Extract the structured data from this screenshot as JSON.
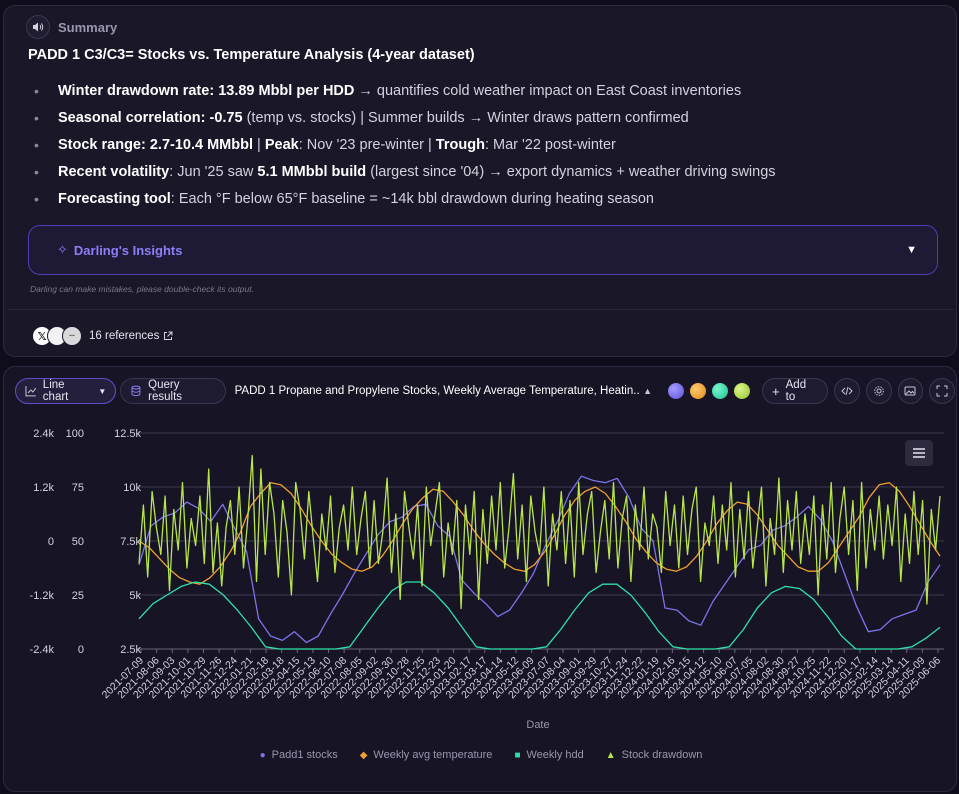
{
  "summary": {
    "label": "Summary",
    "title": "PADD 1 C3/C3= Stocks vs. Temperature Analysis (4-year dataset)",
    "bullets": [
      {
        "parts": [
          {
            "b": true,
            "t": "Winter drawdown rate: "
          },
          {
            "b": true,
            "t": "13.89 Mbbl per HDD"
          },
          {
            "b": false,
            "t": " → quantifies cold weather impact on East Coast inventories"
          }
        ]
      },
      {
        "parts": [
          {
            "b": true,
            "t": "Seasonal correlation: "
          },
          {
            "b": true,
            "t": "-0.75"
          },
          {
            "b": false,
            "t": " (temp vs. stocks) | Summer builds → Winter draws pattern confirmed"
          }
        ]
      },
      {
        "parts": [
          {
            "b": true,
            "t": "Stock range: "
          },
          {
            "b": true,
            "t": "2.7-10.4 MMbbl"
          },
          {
            "b": false,
            "t": " | "
          },
          {
            "b": true,
            "t": "Peak"
          },
          {
            "b": false,
            "t": ": Nov '23 pre-winter | "
          },
          {
            "b": true,
            "t": "Trough"
          },
          {
            "b": false,
            "t": ": Mar '22 post-winter"
          }
        ]
      },
      {
        "parts": [
          {
            "b": true,
            "t": "Recent volatility"
          },
          {
            "b": false,
            "t": ": Jun '25 saw "
          },
          {
            "b": true,
            "t": "5.1 MMbbl build"
          },
          {
            "b": false,
            "t": " (largest since '04) → export dynamics + weather driving swings"
          }
        ]
      },
      {
        "parts": [
          {
            "b": true,
            "t": "Forecasting tool"
          },
          {
            "b": false,
            "t": ": Each °F below 65°F baseline = ~14k bbl drawdown during heating season"
          }
        ]
      }
    ],
    "insights_label": "Darling's Insights",
    "disclaimer": "Darling can make mistakes, please double-check its output.",
    "references_label": "16 references"
  },
  "toolbar": {
    "chart_type_label": "Line chart",
    "query_results_label": "Query results",
    "query_title": "PADD 1 Propane and Propylene Stocks, Weekly Average Temperature, Heatin...",
    "add_to_label": "Add to",
    "swatch_colors": [
      "#7b6ff0",
      "#f0a030",
      "#2ee6b0",
      "#b8e64a"
    ]
  },
  "chart_data": {
    "type": "line",
    "xlabel": "Date",
    "x_ticks": [
      "2021-07-09",
      "2021-08-06",
      "2021-09-03",
      "2021-10-01",
      "2021-10-29",
      "2021-11-26",
      "2021-12-24",
      "2022-01-21",
      "2022-02-18",
      "2022-03-18",
      "2022-04-15",
      "2022-05-13",
      "2022-06-10",
      "2022-07-08",
      "2022-08-05",
      "2022-09-02",
      "2022-09-30",
      "2022-10-28",
      "2022-11-25",
      "2022-12-23",
      "2023-01-20",
      "2023-02-17",
      "2023-03-17",
      "2023-04-14",
      "2023-05-12",
      "2023-06-09",
      "2023-07-07",
      "2023-08-04",
      "2023-09-01",
      "2023-09-29",
      "2023-10-27",
      "2023-11-24",
      "2023-12-22",
      "2024-01-19",
      "2024-02-16",
      "2024-03-15",
      "2024-04-12",
      "2024-05-10",
      "2024-06-07",
      "2024-07-05",
      "2024-08-02",
      "2024-08-30",
      "2024-09-27",
      "2024-10-25",
      "2024-11-22",
      "2024-12-20",
      "2025-01-17",
      "2025-02-14",
      "2025-03-14",
      "2025-04-11",
      "2025-05-09",
      "2025-06-06"
    ],
    "axes": [
      {
        "name": "drawdown",
        "ticks": [
          "2.4k",
          "1.2k",
          "0",
          "-1.2k",
          "-2.4k"
        ],
        "ylim": [
          -2400,
          2400
        ]
      },
      {
        "name": "temperature",
        "ticks": [
          "100",
          "75",
          "50",
          "25",
          "0"
        ],
        "ylim": [
          0,
          100
        ]
      },
      {
        "name": "stocks",
        "ticks": [
          "12.5k",
          "10k",
          "7.5k",
          "5k",
          "2.5k"
        ],
        "ylim": [
          2500,
          12500
        ]
      }
    ],
    "grid": true,
    "legend_position": "bottom",
    "series": [
      {
        "name": "Padd1 stocks",
        "color": "#7b74e8",
        "marker": "circle",
        "axis": "stocks",
        "values": [
          6400,
          8200,
          8600,
          8800,
          9300,
          9000,
          8400,
          9200,
          8100,
          7000,
          3900,
          3100,
          2900,
          3300,
          2800,
          3100,
          4100,
          5000,
          6000,
          6900,
          7800,
          8400,
          8600,
          9100,
          9200,
          8200,
          7700,
          5700,
          5100,
          4600,
          4000,
          4300,
          5100,
          6000,
          7300,
          8400,
          9700,
          10500,
          10300,
          10200,
          10400,
          9500,
          8100,
          7500,
          4400,
          4300,
          3800,
          3600,
          4700,
          5500,
          6300,
          7100,
          7300,
          8000,
          8200,
          8600,
          9100,
          8500,
          7500,
          6000,
          4500,
          3300,
          3400,
          3900,
          4100,
          4300,
          5600,
          6400
        ]
      },
      {
        "name": "Weekly avg temperature",
        "color": "#f0a030",
        "marker": "diamond",
        "axis": "temperature",
        "values": [
          50,
          47,
          42,
          37,
          33,
          31,
          30,
          33,
          38,
          45,
          54,
          66,
          72,
          77,
          76,
          72,
          65,
          57,
          50,
          44,
          40,
          37,
          36,
          38,
          43,
          50,
          58,
          65,
          70,
          74,
          73,
          68,
          62,
          55,
          49,
          44,
          40,
          37,
          36,
          39,
          45,
          53,
          62,
          69,
          73,
          75,
          72,
          66,
          59,
          51,
          45,
          40,
          37,
          36,
          38,
          43,
          50,
          58,
          64,
          68,
          67,
          62,
          55,
          48,
          43,
          38,
          36,
          36,
          40,
          47,
          54,
          61,
          70,
          76,
          77,
          73,
          66,
          58,
          50,
          43
        ]
      },
      {
        "name": "Weekly hdd",
        "color": "#2ee0a8",
        "marker": "square",
        "axis": "stocks",
        "values": [
          3900,
          4600,
          5000,
          5400,
          5600,
          5500,
          5000,
          4300,
          3500,
          2600,
          2500,
          2500,
          2500,
          2500,
          2500,
          2600,
          3500,
          4400,
          5200,
          5600,
          5600,
          5100,
          4400,
          3500,
          2600,
          2500,
          2500,
          2500,
          2500,
          2600,
          3400,
          4300,
          5100,
          5500,
          5500,
          5000,
          4200,
          3300,
          2600,
          2500,
          2500,
          2500,
          2600,
          3400,
          4400,
          5100,
          5400,
          5300,
          4800,
          4000,
          3100,
          2500,
          2500,
          2500,
          2500,
          2600,
          3000,
          3500
        ]
      },
      {
        "name": "Stock drawdown",
        "color": "#b8e64a",
        "marker": "triangle",
        "axis": "drawdown",
        "values": [
          -500,
          800,
          -800,
          1100,
          300,
          -300,
          1000,
          -1100,
          700,
          -200,
          1300,
          -600,
          500,
          -100,
          1000,
          -500,
          1600,
          -700,
          400,
          -1000,
          300,
          900,
          -300,
          1200,
          -600,
          500,
          1900,
          -900,
          1600,
          -300,
          1300,
          600,
          -800,
          900,
          200,
          -1200,
          1300,
          700,
          -400,
          1100,
          100,
          -900,
          600,
          -200,
          1000,
          -700,
          300,
          800,
          -200,
          1200,
          -300,
          500,
          1100,
          -600,
          900,
          -500,
          200,
          1400,
          -700,
          600,
          -1300,
          1100,
          300,
          -400,
          800,
          -1000,
          1200,
          -100,
          600,
          1300,
          -800,
          400,
          -300,
          900,
          -1500,
          800,
          -300,
          1100,
          -1300,
          700,
          -500,
          1000,
          -200,
          1300,
          -600,
          300,
          1500,
          -400,
          800,
          -900,
          1000,
          200,
          -300,
          1200,
          -1000,
          600,
          -200,
          1100,
          -500,
          900,
          -800,
          1300,
          -300,
          600,
          1100,
          -700,
          200,
          900,
          -400,
          1300,
          -600,
          500,
          1000,
          -900,
          800,
          -200,
          1200,
          -400,
          600,
          300,
          -700,
          1100,
          -100,
          800,
          -600,
          1000,
          -300,
          700,
          1200,
          -900,
          400,
          -100,
          1000,
          -500,
          800,
          -200,
          1300,
          -800,
          700,
          -400,
          1100,
          -600,
          300,
          1200,
          -1000,
          500,
          -300,
          1400,
          -700,
          900,
          -200,
          1100,
          -500,
          600,
          -300,
          1000,
          -1200,
          800,
          -400,
          1300,
          -700,
          500,
          1200,
          -300,
          900,
          -1100,
          1300,
          -600,
          700,
          -200,
          1000,
          -400,
          800,
          -100,
          1200,
          -900,
          600,
          -500,
          1100,
          -300,
          900,
          -1400,
          700,
          -200,
          1000
        ]
      }
    ]
  }
}
